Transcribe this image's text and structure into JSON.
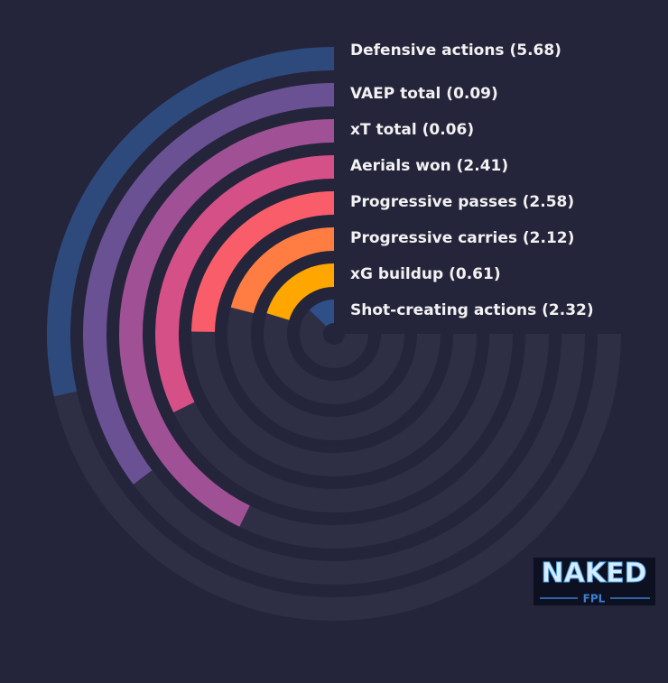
{
  "chart_data": {
    "type": "radial_bar",
    "categories": [
      "Defensive actions (5.68)",
      "VAEP total (0.09)",
      "xT total (0.06)",
      "Aerials won (2.41)",
      "Progressive passes (2.58)",
      "Progressive carries (2.12)",
      "xG buildup (0.61)",
      "Shot-creating actions (2.32)"
    ],
    "values": [
      38,
      47,
      57,
      43,
      33,
      28,
      27,
      17
    ],
    "colors": [
      "#2e4a7d",
      "#6a5193",
      "#a05195",
      "#d45087",
      "#f95d6a",
      "#ff7c43",
      "#ffa600",
      "#2f4f88"
    ],
    "xlim": [
      0,
      100
    ],
    "logo": {
      "title": "NAKED",
      "subtitle": "FPL"
    }
  }
}
